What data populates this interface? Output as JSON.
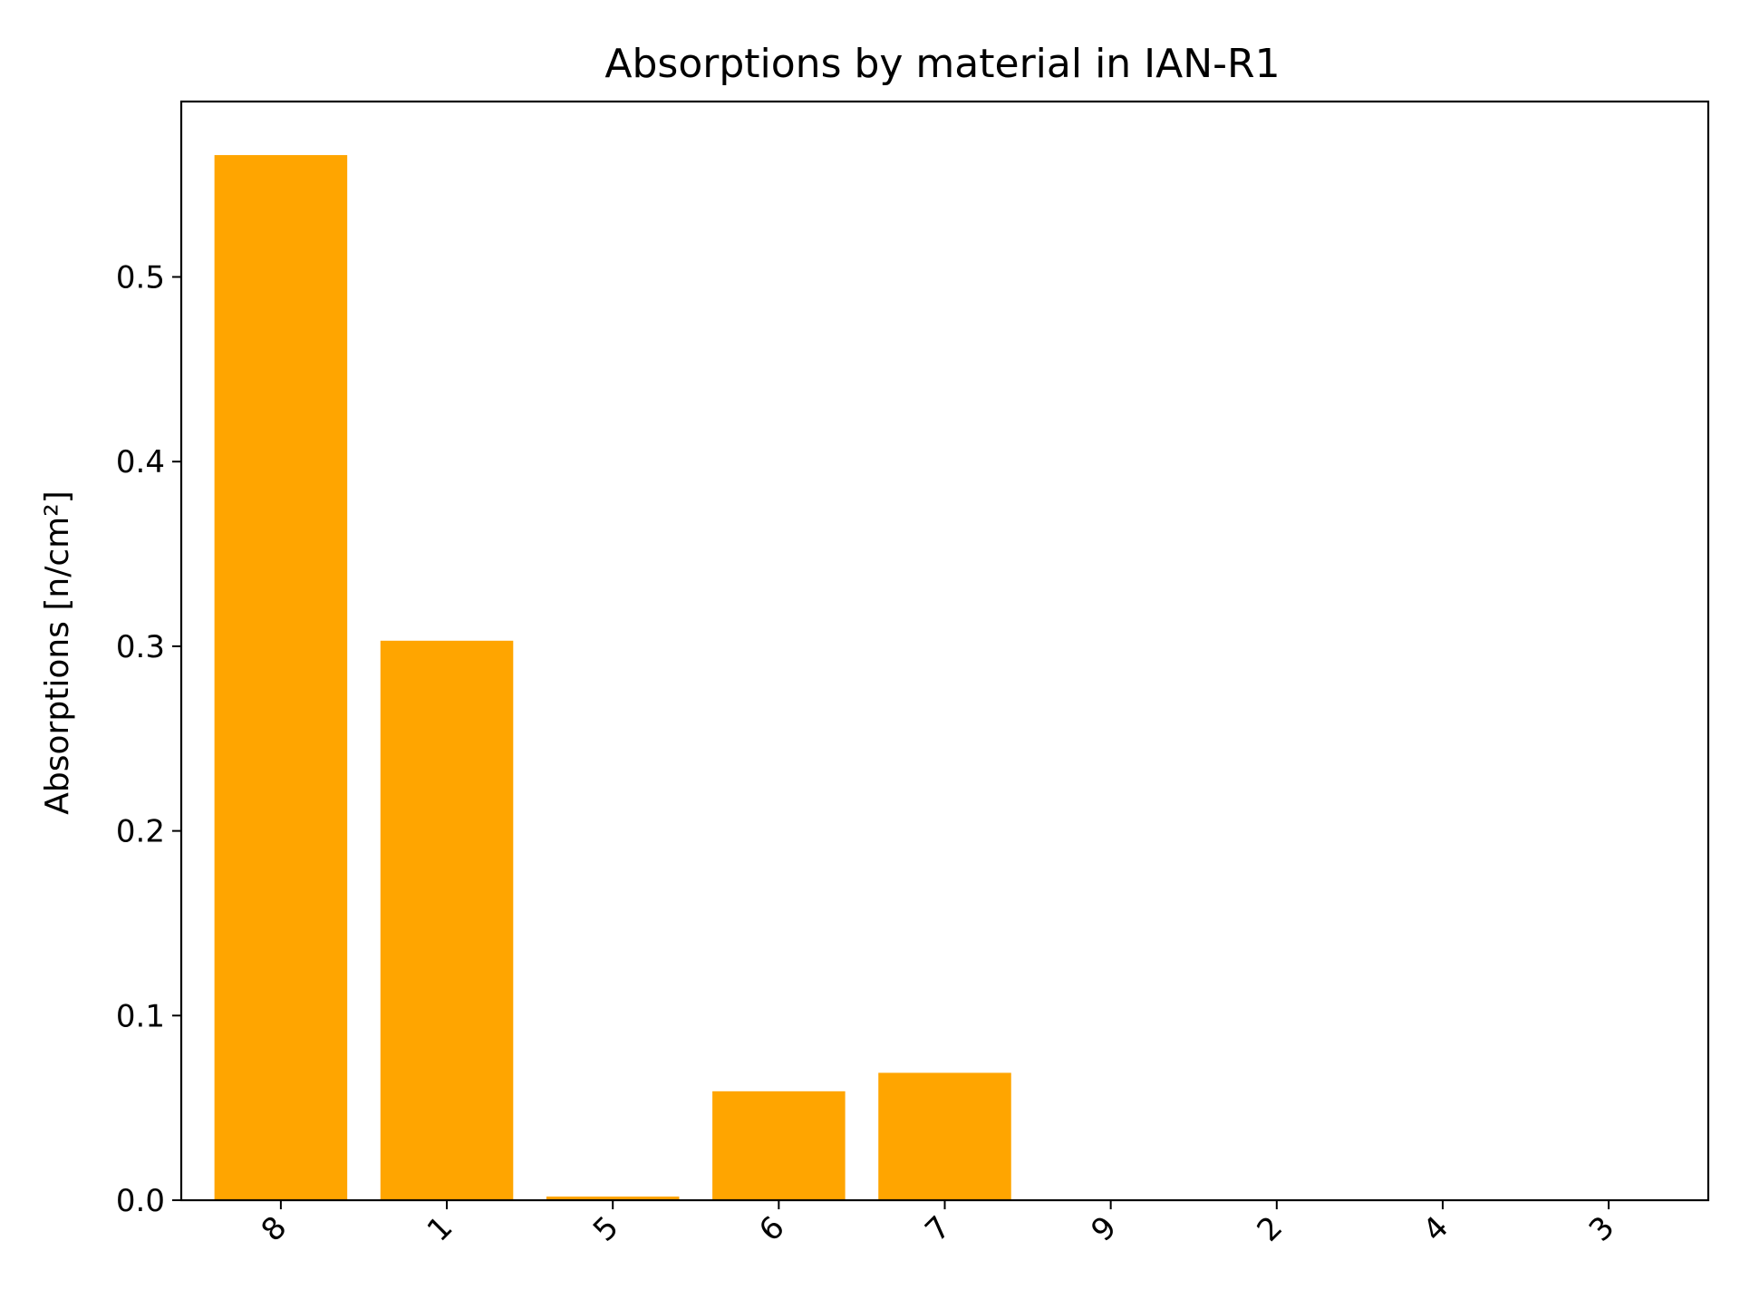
{
  "chart_data": {
    "type": "bar",
    "title": "Absorptions by material in IAN-R1",
    "xlabel": "",
    "ylabel": "Absorptions [n/cm²]",
    "categories": [
      "8",
      "1",
      "5",
      "6",
      "7",
      "9",
      "2",
      "4",
      "3"
    ],
    "values": [
      0.566,
      0.303,
      0.002,
      0.059,
      0.069,
      0.0,
      0.0,
      0.0,
      0.0
    ],
    "ylim": [
      0,
      0.595
    ],
    "yticks": [
      "0.0",
      "0.1",
      "0.2",
      "0.3",
      "0.4",
      "0.5"
    ],
    "ytick_values": [
      0.0,
      0.1,
      0.2,
      0.3,
      0.4,
      0.5
    ],
    "bar_color": "#ffa500",
    "grid": false,
    "legend": "none"
  }
}
